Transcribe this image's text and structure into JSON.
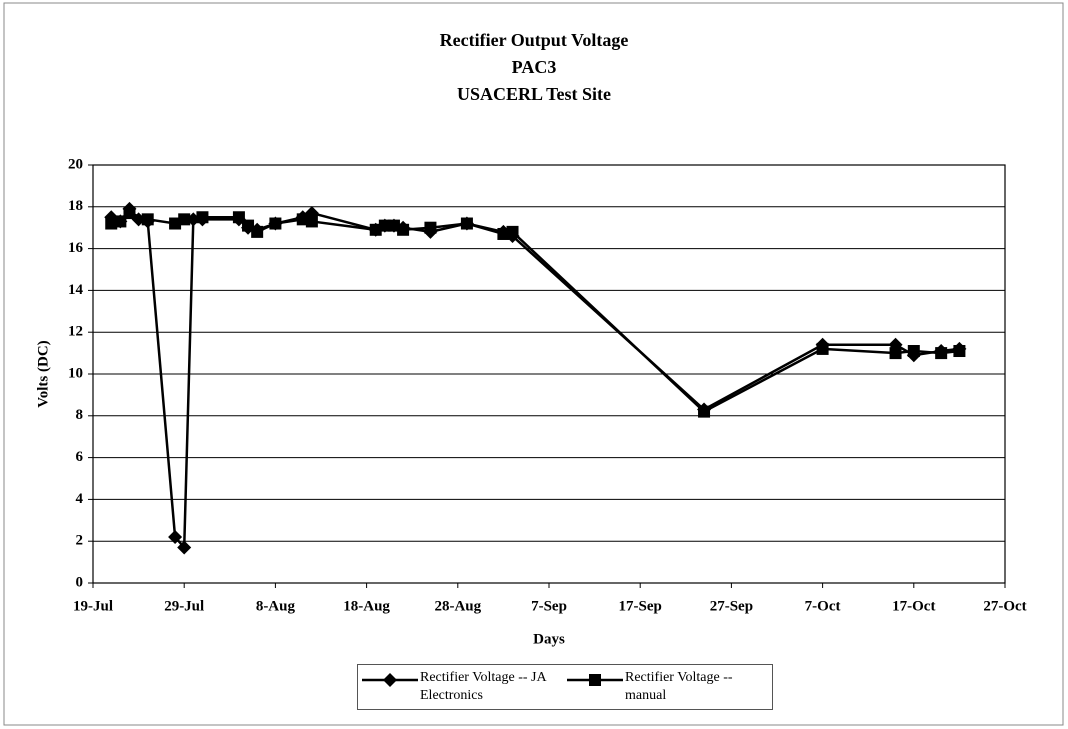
{
  "chart_data": {
    "type": "line",
    "title": [
      "Rectifier Output Voltage",
      "PAC3",
      "USACERL Test Site"
    ],
    "xlabel": "Days",
    "ylabel": "Volts (DC)",
    "xlim": [
      "19-Jul",
      "27-Oct"
    ],
    "xticks": [
      "19-Jul",
      "29-Jul",
      "8-Aug",
      "18-Aug",
      "28-Aug",
      "7-Sep",
      "17-Sep",
      "27-Sep",
      "7-Oct",
      "17-Oct",
      "27-Oct"
    ],
    "ylim": [
      0,
      20
    ],
    "yticks": [
      0,
      2,
      4,
      6,
      8,
      10,
      12,
      14,
      16,
      18,
      20
    ],
    "grid": true,
    "series": [
      {
        "name": "Rectifier Voltage -- JA Electronics",
        "color": "#000000",
        "marker": "diamond",
        "x": [
          "21-Jul",
          "22-Jul",
          "23-Jul",
          "24-Jul",
          "25-Jul",
          "28-Jul",
          "29-Jul",
          "30-Jul",
          "31-Jul",
          "4-Aug",
          "5-Aug",
          "6-Aug",
          "8-Aug",
          "11-Aug",
          "12-Aug",
          "19-Aug",
          "20-Aug",
          "21-Aug",
          "22-Aug",
          "25-Aug",
          "29-Aug",
          "2-Sep",
          "3-Sep",
          "24-Sep",
          "7-Oct",
          "15-Oct",
          "17-Oct",
          "20-Oct",
          "22-Oct"
        ],
        "values": [
          17.5,
          17.3,
          17.9,
          17.4,
          17.3,
          2.2,
          1.7,
          17.4,
          17.4,
          17.4,
          17.0,
          16.9,
          17.2,
          17.5,
          17.7,
          16.9,
          17.1,
          17.1,
          17.0,
          16.8,
          17.2,
          16.8,
          16.6,
          8.3,
          11.4,
          11.4,
          10.9,
          11.1,
          11.2
        ]
      },
      {
        "name": "Rectifier Voltage -- manual",
        "color": "#000000",
        "marker": "square",
        "x": [
          "21-Jul",
          "22-Jul",
          "23-Jul",
          "25-Jul",
          "28-Jul",
          "29-Jul",
          "31-Jul",
          "4-Aug",
          "5-Aug",
          "6-Aug",
          "8-Aug",
          "11-Aug",
          "12-Aug",
          "19-Aug",
          "20-Aug",
          "21-Aug",
          "22-Aug",
          "25-Aug",
          "29-Aug",
          "2-Sep",
          "3-Sep",
          "24-Sep",
          "7-Oct",
          "15-Oct",
          "17-Oct",
          "20-Oct",
          "22-Oct"
        ],
        "values": [
          17.2,
          17.3,
          17.7,
          17.4,
          17.2,
          17.4,
          17.5,
          17.5,
          17.1,
          16.8,
          17.2,
          17.4,
          17.3,
          16.9,
          17.1,
          17.1,
          16.9,
          17.0,
          17.2,
          16.7,
          16.8,
          8.2,
          11.2,
          11.0,
          11.1,
          11.0,
          11.1
        ]
      }
    ]
  }
}
